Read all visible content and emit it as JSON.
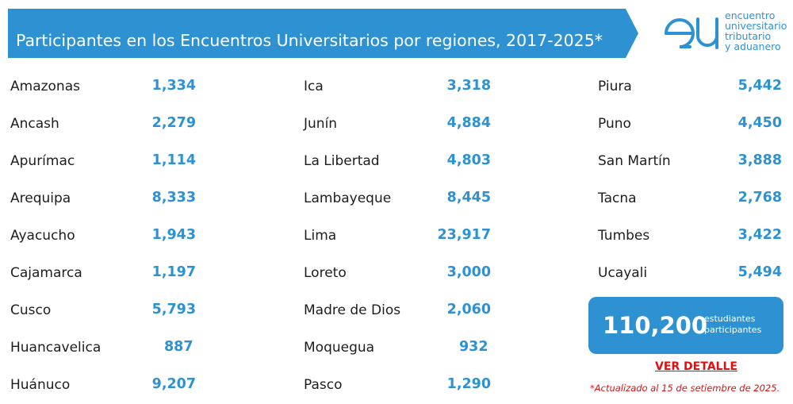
{
  "header": {
    "title": "Participantes en los Encuentros Universitarios por regiones, 2017-2025*",
    "logo": {
      "mark": "eu",
      "lines": [
        "encuentro",
        "universitario",
        "tributario",
        "y aduanero"
      ]
    }
  },
  "columns": [
    {
      "rows": [
        {
          "region": "Amazonas",
          "value": "1,334"
        },
        {
          "region": "Ancash",
          "value": "2,279"
        },
        {
          "region": "Apurímac",
          "value": "1,114"
        },
        {
          "region": "Arequipa",
          "value": "8,333"
        },
        {
          "region": "Ayacucho",
          "value": "1,943"
        },
        {
          "region": "Cajamarca",
          "value": "1,197"
        },
        {
          "region": "Cusco",
          "value": "5,793"
        },
        {
          "region": "Huancavelica",
          "value": "887"
        },
        {
          "region": "Huánuco",
          "value": "9,207"
        }
      ]
    },
    {
      "rows": [
        {
          "region": "Ica",
          "value": "3,318"
        },
        {
          "region": "Junín",
          "value": "4,884"
        },
        {
          "region": "La Libertad",
          "value": "4,803"
        },
        {
          "region": "Lambayeque",
          "value": "8,445"
        },
        {
          "region": "Lima",
          "value": "23,917"
        },
        {
          "region": "Loreto",
          "value": "3,000"
        },
        {
          "region": "Madre de Dios",
          "value": "2,060"
        },
        {
          "region": "Moquegua",
          "value": "932"
        },
        {
          "region": "Pasco",
          "value": "1,290"
        }
      ]
    },
    {
      "rows": [
        {
          "region": "Piura",
          "value": "5,442"
        },
        {
          "region": "Puno",
          "value": "4,450"
        },
        {
          "region": "San Martín",
          "value": "3,888"
        },
        {
          "region": "Tacna",
          "value": "2,768"
        },
        {
          "region": "Tumbes",
          "value": "3,422"
        },
        {
          "region": "Ucayali",
          "value": "5,494"
        }
      ]
    }
  ],
  "summary": {
    "total": "110,200",
    "label_line1": "estudiantes",
    "label_line2": "participantes",
    "detail_link": "VER DETALLE",
    "footnote": "*Actualizado al 15 de setiembre de 2025."
  },
  "colors": {
    "accent": "#2e92d2",
    "text": "#1d1d1d",
    "alert": "#e01010"
  }
}
